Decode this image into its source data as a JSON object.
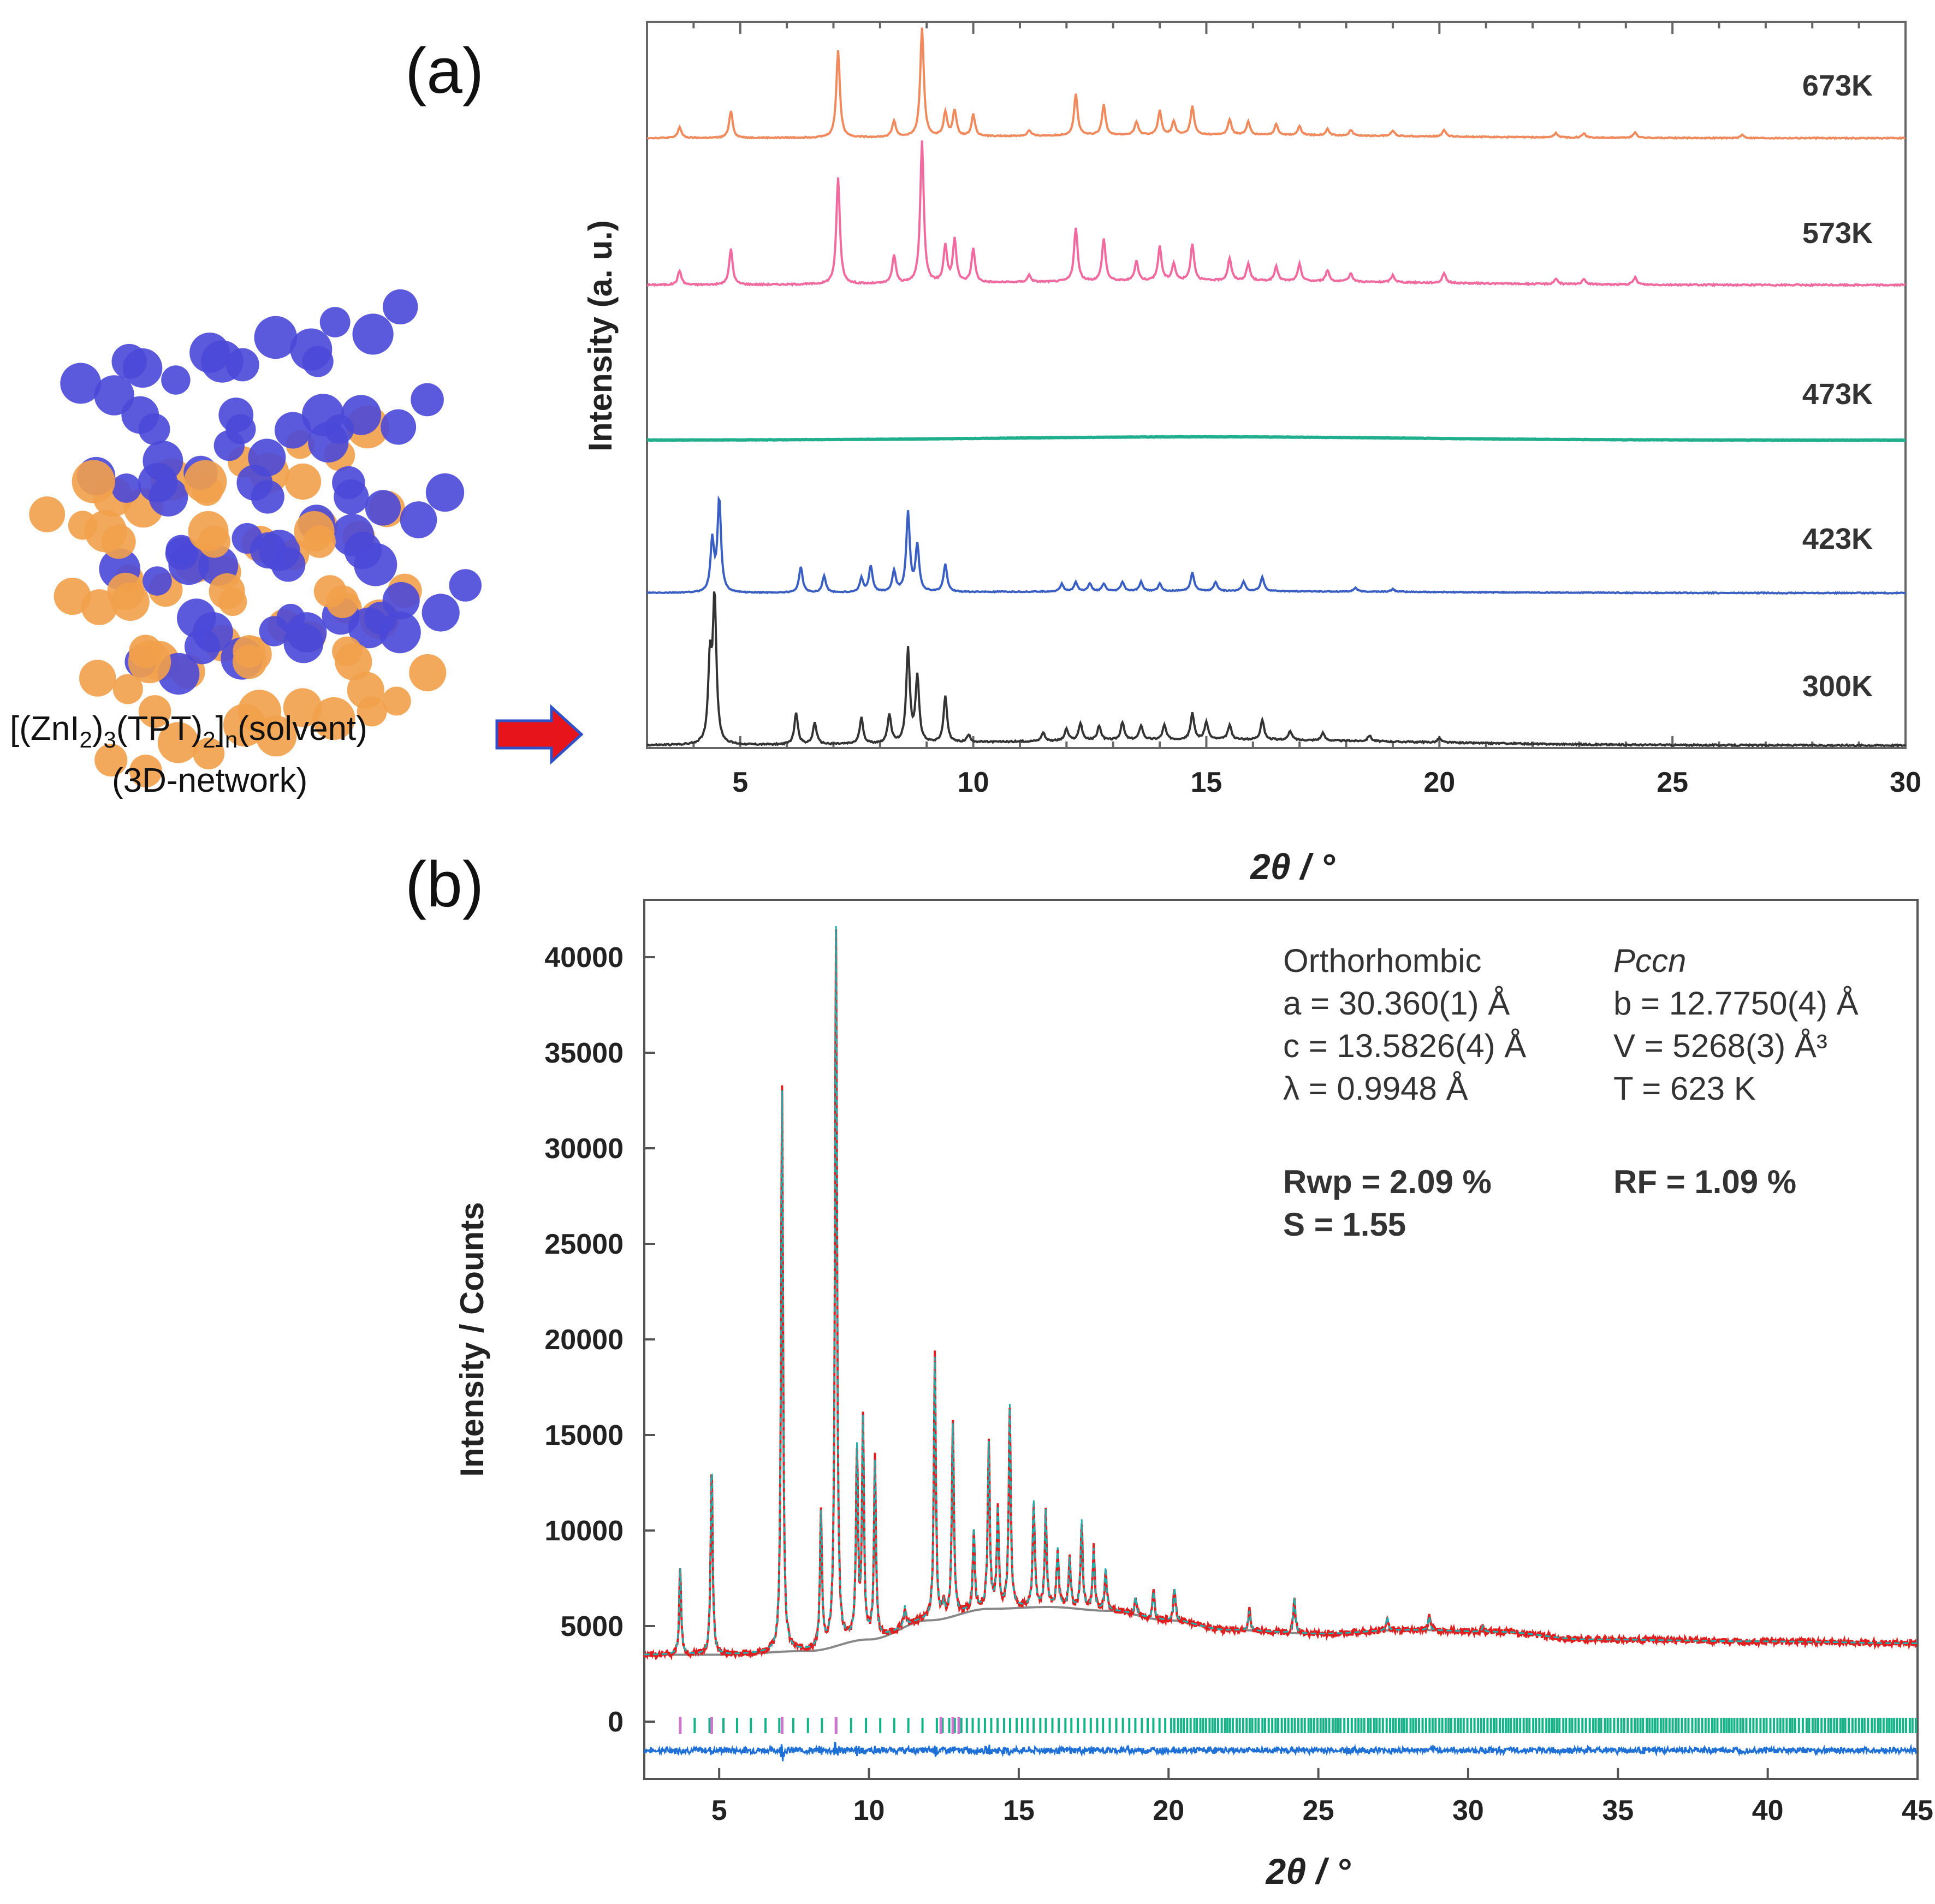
{
  "labels": {
    "a": "(a)",
    "b": "(b)"
  },
  "structure": {
    "caption_line1": "[(ZnI2)3(TPT)2]n(solvent)",
    "caption_line2": "(3D-network)"
  },
  "colors": {
    "673K": "#f08a5d",
    "573K": "#f06aa0",
    "473K": "#1fae8e",
    "423K": "#3a5fc2",
    "300K": "#333333",
    "observed": "#e02020",
    "calculated": "#1fb0b0",
    "background": "#888888",
    "difference": "#1e6fd6",
    "ticks_phase1": "#cc77cc",
    "ticks_phase2": "#17b388",
    "arrow": "#e8141c",
    "arrow_outline": "#3050c8",
    "framework_blue": "#4a48d8",
    "framework_orange": "#f2a04a"
  },
  "chart_data": [
    {
      "type": "line",
      "title": "",
      "xlabel": "2θ / °",
      "ylabel": "Intensity (a. u.)",
      "xlim": [
        3,
        30
      ],
      "xticks": [
        5,
        10,
        15,
        20,
        25,
        30
      ],
      "xtick_labels": [
        "5",
        "10",
        "15",
        "20",
        "25",
        "30"
      ],
      "series": [
        {
          "name": "673K",
          "label": "673K",
          "peaks": [
            [
              3.7,
              0.1
            ],
            [
              4.8,
              0.25
            ],
            [
              7.1,
              0.8
            ],
            [
              8.3,
              0.15
            ],
            [
              8.9,
              1.0
            ],
            [
              9.4,
              0.22
            ],
            [
              9.6,
              0.24
            ],
            [
              10.0,
              0.2
            ],
            [
              11.2,
              0.05
            ],
            [
              12.2,
              0.38
            ],
            [
              12.8,
              0.28
            ],
            [
              13.5,
              0.12
            ],
            [
              14.0,
              0.22
            ],
            [
              14.3,
              0.12
            ],
            [
              14.7,
              0.26
            ],
            [
              15.5,
              0.14
            ],
            [
              15.9,
              0.12
            ],
            [
              16.5,
              0.1
            ],
            [
              17.0,
              0.08
            ],
            [
              17.6,
              0.06
            ],
            [
              18.1,
              0.05
            ],
            [
              19.0,
              0.05
            ],
            [
              20.1,
              0.06
            ],
            [
              22.5,
              0.04
            ],
            [
              23.1,
              0.04
            ],
            [
              24.2,
              0.05
            ],
            [
              26.5,
              0.03
            ]
          ],
          "hump": 0.03
        },
        {
          "name": "573K",
          "label": "573K",
          "peaks": [
            [
              3.7,
              0.1
            ],
            [
              4.8,
              0.25
            ],
            [
              7.1,
              0.75
            ],
            [
              8.3,
              0.2
            ],
            [
              8.9,
              1.0
            ],
            [
              9.4,
              0.26
            ],
            [
              9.6,
              0.3
            ],
            [
              10.0,
              0.24
            ],
            [
              11.2,
              0.05
            ],
            [
              12.2,
              0.38
            ],
            [
              12.8,
              0.3
            ],
            [
              13.5,
              0.14
            ],
            [
              14.0,
              0.24
            ],
            [
              14.3,
              0.12
            ],
            [
              14.7,
              0.26
            ],
            [
              15.5,
              0.16
            ],
            [
              15.9,
              0.12
            ],
            [
              16.5,
              0.1
            ],
            [
              17.0,
              0.12
            ],
            [
              17.6,
              0.08
            ],
            [
              18.1,
              0.06
            ],
            [
              19.0,
              0.05
            ],
            [
              20.1,
              0.07
            ],
            [
              22.5,
              0.04
            ],
            [
              23.1,
              0.04
            ],
            [
              24.2,
              0.05
            ]
          ],
          "hump": 0.03
        },
        {
          "name": "473K",
          "label": "473K",
          "peaks": [],
          "hump": 0.1
        },
        {
          "name": "423K",
          "label": "423K",
          "peaks": [
            [
              4.4,
              0.55
            ],
            [
              4.55,
              1.0
            ],
            [
              6.3,
              0.28
            ],
            [
              6.8,
              0.18
            ],
            [
              7.6,
              0.15
            ],
            [
              7.8,
              0.28
            ],
            [
              8.3,
              0.22
            ],
            [
              8.6,
              0.85
            ],
            [
              8.8,
              0.5
            ],
            [
              9.4,
              0.3
            ],
            [
              11.9,
              0.08
            ],
            [
              12.2,
              0.1
            ],
            [
              12.5,
              0.08
            ],
            [
              12.8,
              0.08
            ],
            [
              13.2,
              0.1
            ],
            [
              13.6,
              0.1
            ],
            [
              14.0,
              0.08
            ],
            [
              14.7,
              0.2
            ],
            [
              15.2,
              0.1
            ],
            [
              15.8,
              0.1
            ],
            [
              16.2,
              0.15
            ],
            [
              18.2,
              0.04
            ],
            [
              19.0,
              0.03
            ]
          ],
          "hump": 0.02
        },
        {
          "name": "300K",
          "label": "300K",
          "peaks": [
            [
              4.35,
              0.55
            ],
            [
              4.45,
              1.0
            ],
            [
              6.2,
              0.22
            ],
            [
              6.6,
              0.15
            ],
            [
              7.6,
              0.18
            ],
            [
              8.2,
              0.2
            ],
            [
              8.6,
              0.65
            ],
            [
              8.8,
              0.45
            ],
            [
              9.4,
              0.32
            ],
            [
              9.9,
              0.05
            ],
            [
              11.5,
              0.06
            ],
            [
              12.0,
              0.08
            ],
            [
              12.3,
              0.12
            ],
            [
              12.7,
              0.1
            ],
            [
              13.2,
              0.12
            ],
            [
              13.6,
              0.1
            ],
            [
              14.1,
              0.1
            ],
            [
              14.7,
              0.18
            ],
            [
              15.0,
              0.12
            ],
            [
              15.5,
              0.1
            ],
            [
              16.2,
              0.14
            ],
            [
              16.8,
              0.06
            ],
            [
              17.5,
              0.05
            ],
            [
              18.5,
              0.04
            ],
            [
              20.0,
              0.03
            ]
          ],
          "hump": 0.04
        }
      ]
    },
    {
      "type": "line",
      "title": "",
      "xlabel": "2θ / °",
      "ylabel": "Intensity / Counts",
      "xlim": [
        2.5,
        45
      ],
      "ylim": [
        -3000,
        43000
      ],
      "xticks": [
        5,
        10,
        15,
        20,
        25,
        30,
        35,
        40,
        45
      ],
      "xtick_labels": [
        "5",
        "10",
        "15",
        "20",
        "25",
        "30",
        "35",
        "40",
        "45"
      ],
      "yticks": [
        0,
        5000,
        10000,
        15000,
        20000,
        25000,
        30000,
        35000,
        40000
      ],
      "ytick_labels": [
        "0",
        "5000",
        "10000",
        "15000",
        "20000",
        "25000",
        "30000",
        "35000",
        "40000"
      ],
      "background_points": [
        [
          2.5,
          3500
        ],
        [
          5,
          3500
        ],
        [
          8,
          3700
        ],
        [
          10,
          4300
        ],
        [
          12,
          5300
        ],
        [
          14,
          5900
        ],
        [
          16,
          6000
        ],
        [
          18,
          5800
        ],
        [
          20,
          5300
        ],
        [
          22,
          4800
        ],
        [
          25,
          4600
        ],
        [
          28,
          4800
        ],
        [
          31,
          4700
        ],
        [
          34,
          4300
        ],
        [
          40,
          4200
        ],
        [
          45,
          4100
        ]
      ],
      "observed_peaks": [
        [
          3.7,
          8000
        ],
        [
          4.75,
          13500
        ],
        [
          7.1,
          33000
        ],
        [
          8.4,
          10800
        ],
        [
          8.9,
          41500
        ],
        [
          9.6,
          14000
        ],
        [
          9.8,
          15500
        ],
        [
          10.2,
          13500
        ],
        [
          11.2,
          6000
        ],
        [
          12.2,
          19000
        ],
        [
          12.5,
          6000
        ],
        [
          12.8,
          15500
        ],
        [
          13.5,
          10000
        ],
        [
          14.0,
          14500
        ],
        [
          14.3,
          11000
        ],
        [
          14.7,
          16500
        ],
        [
          15.5,
          11500
        ],
        [
          15.9,
          11000
        ],
        [
          16.3,
          9000
        ],
        [
          16.7,
          8500
        ],
        [
          17.1,
          10500
        ],
        [
          17.5,
          9000
        ],
        [
          17.9,
          8000
        ],
        [
          18.9,
          6500
        ],
        [
          19.5,
          6800
        ],
        [
          20.2,
          7000
        ],
        [
          22.7,
          5800
        ],
        [
          24.2,
          6500
        ],
        [
          27.3,
          5500
        ],
        [
          28.7,
          5500
        ],
        [
          30.5,
          5000
        ]
      ],
      "difference_offset": -1500,
      "tick_offset": -200,
      "annotations": {
        "col1": [
          "Orthorhombic",
          "a = 30.360(1) Å",
          "c = 13.5826(4) Å",
          "λ = 0.9948 Å"
        ],
        "col2": [
          "Pccn",
          "b = 12.7750(4) Å",
          "V = 5268(3) Å³",
          "T = 623 K"
        ],
        "rwp": "Rwp = 2.09 %",
        "rf": "RF = 1.09 %",
        "s": "S = 1.55"
      }
    }
  ]
}
